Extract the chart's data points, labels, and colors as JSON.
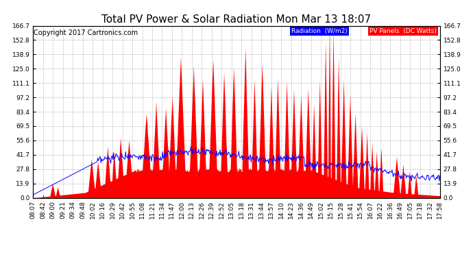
{
  "title": "Total PV Power & Solar Radiation Mon Mar 13 18:07",
  "copyright": "Copyright 2017 Cartronics.com",
  "legend_labels": [
    "Radiation  (W/m2)",
    "PV Panels  (DC Watts)"
  ],
  "legend_bg_colors": [
    "blue",
    "red"
  ],
  "yticks": [
    0.0,
    13.9,
    27.8,
    41.7,
    55.6,
    69.5,
    83.4,
    97.2,
    111.1,
    125.0,
    138.9,
    152.8,
    166.7
  ],
  "xtick_labels": [
    "08:07",
    "08:42",
    "09:00",
    "09:21",
    "09:34",
    "09:48",
    "10:02",
    "10:16",
    "10:29",
    "10:42",
    "10:55",
    "11:08",
    "11:21",
    "11:34",
    "11:47",
    "12:00",
    "12:13",
    "12:26",
    "12:39",
    "12:52",
    "13:05",
    "13:18",
    "13:31",
    "13:44",
    "13:57",
    "14:10",
    "14:23",
    "14:36",
    "14:49",
    "15:02",
    "15:15",
    "15:28",
    "15:41",
    "15:54",
    "16:07",
    "16:22",
    "16:36",
    "16:49",
    "17:05",
    "17:18",
    "17:32",
    "17:58"
  ],
  "ymax": 166.7,
  "ymin": 0.0,
  "background_color": "#ffffff",
  "grid_color": "#aaaaaa",
  "title_fontsize": 11,
  "axis_fontsize": 6.5,
  "copyright_fontsize": 7
}
